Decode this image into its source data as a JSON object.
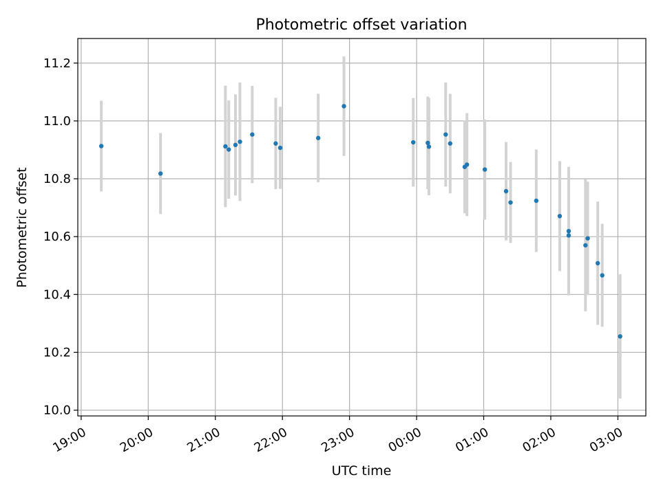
{
  "chart_data": {
    "type": "scatter",
    "title": "Photometric offset variation",
    "xlabel": "UTC time",
    "ylabel": "Photometric offset",
    "x_ticks": [
      "19:00",
      "20:00",
      "21:00",
      "22:00",
      "23:00",
      "00:00",
      "01:00",
      "02:00",
      "03:00"
    ],
    "y_ticks": [
      "10.0",
      "10.2",
      "10.4",
      "10.6",
      "10.8",
      "11.0",
      "11.2"
    ],
    "xlim": [
      "18:57",
      "03:25"
    ],
    "ylim": [
      9.98,
      11.285
    ],
    "grid": true,
    "marker_color": "#1f77b4",
    "errorbar_color": "#d3d3d3",
    "points": [
      {
        "x": "19:18",
        "y": 10.913,
        "yerr": 0.157
      },
      {
        "x": "20:11",
        "y": 10.818,
        "yerr": 0.14
      },
      {
        "x": "21:09",
        "y": 10.912,
        "yerr": 0.21
      },
      {
        "x": "21:12",
        "y": 10.901,
        "yerr": 0.17
      },
      {
        "x": "21:18",
        "y": 10.917,
        "yerr": 0.175
      },
      {
        "x": "21:22",
        "y": 10.928,
        "yerr": 0.205
      },
      {
        "x": "21:33",
        "y": 10.953,
        "yerr": 0.168
      },
      {
        "x": "21:54",
        "y": 10.922,
        "yerr": 0.158
      },
      {
        "x": "21:58",
        "y": 10.907,
        "yerr": 0.142
      },
      {
        "x": "22:32",
        "y": 10.941,
        "yerr": 0.153
      },
      {
        "x": "22:55",
        "y": 11.051,
        "yerr": 0.172
      },
      {
        "x": "23:57",
        "y": 10.926,
        "yerr": 0.153
      },
      {
        "x": "00:10",
        "y": 10.924,
        "yerr": 0.16
      },
      {
        "x": "00:11",
        "y": 10.911,
        "yerr": 0.168
      },
      {
        "x": "00:26",
        "y": 10.953,
        "yerr": 0.18
      },
      {
        "x": "00:30",
        "y": 10.922,
        "yerr": 0.172
      },
      {
        "x": "00:43",
        "y": 10.841,
        "yerr": 0.16
      },
      {
        "x": "00:45",
        "y": 10.849,
        "yerr": 0.178
      },
      {
        "x": "01:01",
        "y": 10.832,
        "yerr": 0.173
      },
      {
        "x": "01:20",
        "y": 10.757,
        "yerr": 0.17
      },
      {
        "x": "01:24",
        "y": 10.718,
        "yerr": 0.14
      },
      {
        "x": "01:47",
        "y": 10.724,
        "yerr": 0.177
      },
      {
        "x": "02:08",
        "y": 10.671,
        "yerr": 0.19
      },
      {
        "x": "02:16",
        "y": 10.619,
        "yerr": 0.222
      },
      {
        "x": "02:16",
        "y": 10.604,
        "yerr": 0.2
      },
      {
        "x": "02:31",
        "y": 10.57,
        "yerr": 0.228
      },
      {
        "x": "02:33",
        "y": 10.594,
        "yerr": 0.196
      },
      {
        "x": "02:42",
        "y": 10.508,
        "yerr": 0.213
      },
      {
        "x": "02:46",
        "y": 10.466,
        "yerr": 0.178
      },
      {
        "x": "03:02",
        "y": 10.255,
        "yerr": 0.215
      }
    ]
  }
}
